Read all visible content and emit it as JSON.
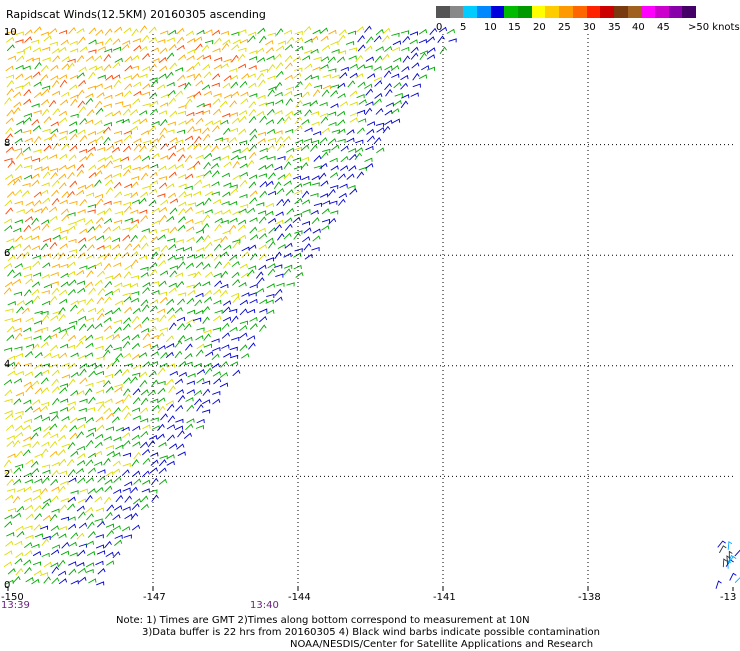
{
  "title": "Rapidscat Winds(12.5KM) 20160305 ascending",
  "colorbar": {
    "labels": [
      "0",
      "5",
      "10",
      "15",
      "20",
      "25",
      "30",
      "35",
      "40",
      "45",
      ">50 knots"
    ],
    "colors": [
      "#555555",
      "#888888",
      "#00ccff",
      "#0088ff",
      "#0000dd",
      "#00bb00",
      "#009900",
      "#ffff00",
      "#ffcc00",
      "#ff9900",
      "#ff6600",
      "#ff2200",
      "#cc0000",
      "#7a3a10",
      "#a06020",
      "#ff00ff",
      "#cc00cc",
      "#8800aa",
      "#440066"
    ]
  },
  "map": {
    "x_ticks": [
      "-150",
      "-147",
      "-144",
      "-141",
      "-138",
      "-13"
    ],
    "y_ticks": [
      "0",
      "2",
      "4",
      "6",
      "8",
      "10"
    ],
    "times": [
      "13:39",
      "13:40"
    ],
    "lon_range": [
      -150,
      -135
    ],
    "lat_range": [
      0,
      10
    ],
    "grid": "dotted",
    "wind_colors": {
      "light": "#0000cc",
      "low": "#00aa00",
      "mid": "#dddd00",
      "high": "#ffaa00",
      "strong": "#ff4400"
    }
  },
  "notes": {
    "line1": "Note: 1) Times are GMT 2)Times along bottom correspond to measurement at 10N",
    "line2": "3)Data buffer is 22 hrs from 20160305 4) Black wind barbs indicate possible contamination",
    "line3": "NOAA/NESDIS/Center for Satellite Applications and Research"
  }
}
